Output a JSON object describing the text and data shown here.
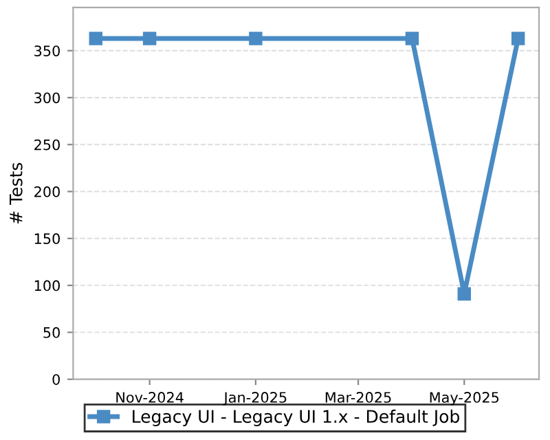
{
  "chart_data": {
    "type": "line",
    "ylabel": "# Tests",
    "x": [
      "2024-10-01",
      "2024-11-01",
      "2025-01-01",
      "2025-04-01",
      "2025-05-01",
      "2025-06-01"
    ],
    "series": [
      {
        "name": "Legacy UI - Legacy UI 1.x - Default Job",
        "color": "#4a8bc4",
        "values": [
          363,
          363,
          363,
          363,
          91,
          363
        ]
      }
    ],
    "xlim": [
      "2024-09-18",
      "2025-06-13"
    ],
    "ylim": [
      0,
      396
    ],
    "xticks": [
      {
        "value": "2024-11-01",
        "label": "Nov-2024"
      },
      {
        "value": "2025-01-01",
        "label": "Jan-2025"
      },
      {
        "value": "2025-03-01",
        "label": "Mar-2025"
      },
      {
        "value": "2025-05-01",
        "label": "May-2025"
      }
    ],
    "yticks": [
      0,
      50,
      100,
      150,
      200,
      250,
      300,
      350
    ],
    "grid": "y",
    "legend": "bottom",
    "marker": "square",
    "line_style": "solid"
  }
}
